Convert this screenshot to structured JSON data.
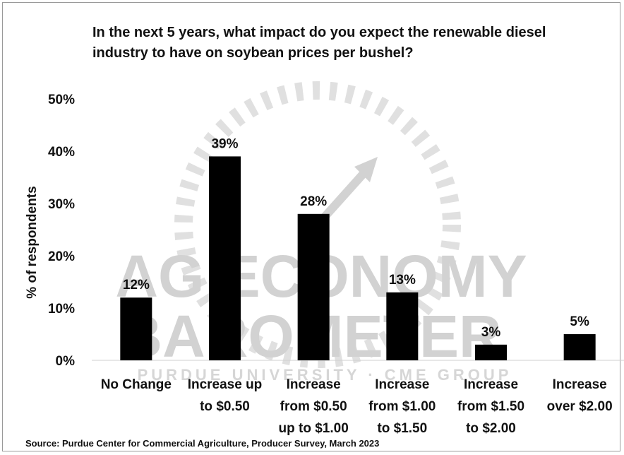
{
  "title": "In the next 5 years, what impact do you expect the renewable diesel industry to have on soybean prices per bushel?",
  "source": "Source: Purdue Center for Commercial Agriculture, Producer Survey, March 2023",
  "watermark": {
    "line1": "AG ECONOMY",
    "line2": "BAROMETER",
    "line3": "PURDUE UNIVERSITY · CME GROUP"
  },
  "chart_data": {
    "type": "bar",
    "title": "In the next 5 years, what impact do you expect the renewable diesel industry to have on soybean prices per bushel?",
    "ylabel": "% of respondents",
    "xlabel": "",
    "ylim": [
      0,
      50
    ],
    "yticks": [
      "0%",
      "10%",
      "20%",
      "30%",
      "40%",
      "50%"
    ],
    "grid": false,
    "legend": "none",
    "bar_color": "#000000",
    "categories": [
      [
        "No Change"
      ],
      [
        "Increase up",
        "to $0.50"
      ],
      [
        "Increase",
        "from $0.50",
        "up to $1.00"
      ],
      [
        "Increase",
        "from $1.00",
        "to $1.50"
      ],
      [
        "Increase",
        "from $1.50",
        "to $2.00"
      ],
      [
        "Increase",
        "over $2.00"
      ]
    ],
    "values": [
      12,
      39,
      28,
      13,
      3,
      5
    ],
    "data_labels": [
      "12%",
      "39%",
      "28%",
      "13%",
      "3%",
      "5%"
    ]
  }
}
